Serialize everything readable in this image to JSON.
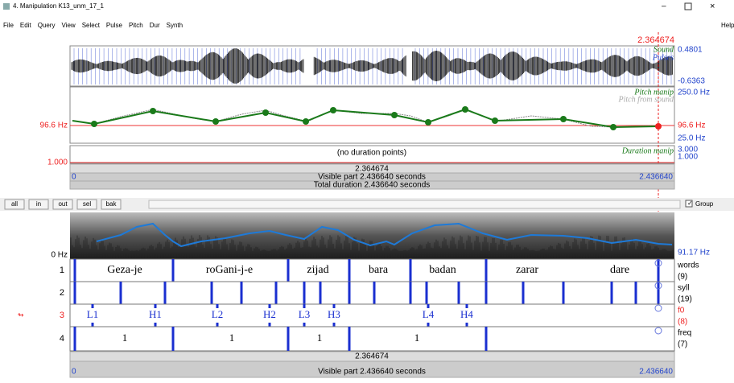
{
  "window": {
    "title": "4. Manipulation K13_unm_17_1",
    "menu": [
      "File",
      "Edit",
      "Query",
      "View",
      "Select",
      "Pulse",
      "Pitch",
      "Dur",
      "Synth"
    ],
    "help": "Help"
  },
  "manipulation": {
    "cursor": "2.364674",
    "sound": {
      "labels": [
        "Sound",
        "Pulses"
      ],
      "max": "0.4801",
      "min": "-0.6363"
    },
    "pitch": {
      "labels": [
        "Pitch manip",
        "Pitch from sound"
      ],
      "top": "250.0 Hz",
      "bottom": "25.0 Hz",
      "left_value": "96.6 Hz",
      "right_value": "96.6 Hz"
    },
    "duration": {
      "empty": "(no duration points)",
      "label": "Duration manip",
      "top": "3.000",
      "bottom": "1.000",
      "left_value": "1.000"
    },
    "timebar": {
      "cursor": "2.364674",
      "start": "0",
      "visible": "Visible part 2.436640 seconds",
      "end": "2.436640",
      "total": "Total duration 2.436640 seconds"
    }
  },
  "buttons": [
    "all",
    "in",
    "out",
    "sel",
    "bak"
  ],
  "group": "Group",
  "textgrid": {
    "bottom_freq": "0 Hz",
    "pitch_value": "91.17 Hz",
    "tiers": [
      {
        "number": "1",
        "name": "words",
        "count": "(9)",
        "labels": [
          "Geza-je",
          "roGani-j-e",
          "zijad",
          "bara",
          "badan",
          "zarar",
          "dare"
        ]
      },
      {
        "number": "2",
        "name": "syll",
        "count": "(19)",
        "labels": []
      },
      {
        "number": "3",
        "name": "f0",
        "count": "(8)",
        "labels": [
          "L1",
          "H1",
          "L2",
          "H2",
          "L3",
          "H3",
          "L4",
          "H4"
        ]
      },
      {
        "number": "4",
        "name": "freq",
        "count": "(7)",
        "labels": [
          "1",
          "1",
          "1",
          "1"
        ]
      }
    ],
    "timebar": {
      "cursor": "2.364674",
      "start": "0",
      "visible": "Visible part 2.436640 seconds",
      "end": "2.436640"
    }
  }
}
